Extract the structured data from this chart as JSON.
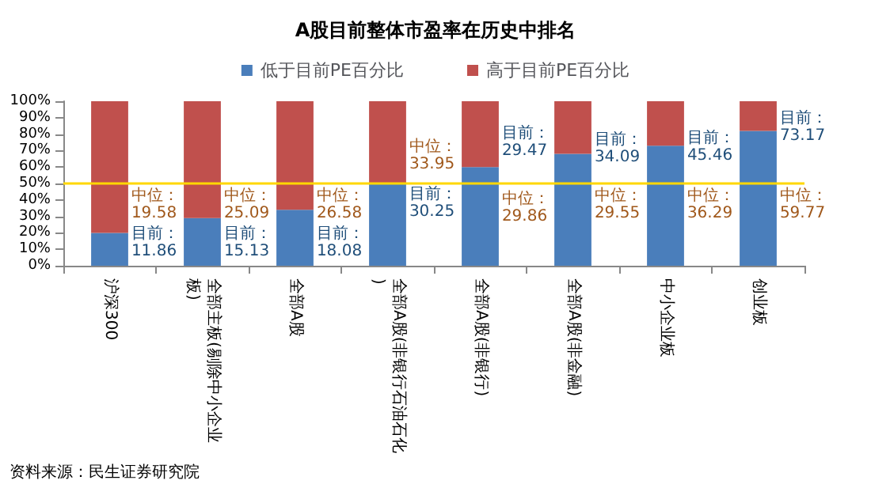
{
  "chart_data": {
    "type": "bar",
    "title": "A股目前整体市盈率在历史中排名",
    "categories": [
      "沪深300",
      "全部主板(剔除中小企业板)",
      "全部A股",
      "全部A股(非银行石油石化)",
      "全部A股(非银行)",
      "全部A股(非金融)",
      "中小企业板",
      "创业板"
    ],
    "series": [
      {
        "name": "低于目前PE百分比",
        "color": "#4a7ebb",
        "values": [
          20,
          29,
          34,
          50,
          60,
          68,
          73,
          82
        ]
      },
      {
        "name": "高于目前PE百分比",
        "color": "#c0504d",
        "values": [
          80,
          71,
          66,
          50,
          40,
          32,
          27,
          18
        ]
      }
    ],
    "stacked": true,
    "ylim": [
      0,
      100
    ],
    "yticks": [
      {
        "value": 0,
        "label": "0%"
      },
      {
        "value": 10,
        "label": "10%"
      },
      {
        "value": 20,
        "label": "20%"
      },
      {
        "value": 30,
        "label": "30%"
      },
      {
        "value": 40,
        "label": "40%"
      },
      {
        "value": 50,
        "label": "50%"
      },
      {
        "value": 60,
        "label": "60%"
      },
      {
        "value": 70,
        "label": "70%"
      },
      {
        "value": 80,
        "label": "80%"
      },
      {
        "value": 90,
        "label": "90%"
      },
      {
        "value": 100,
        "label": "100%"
      }
    ],
    "ref_lines": [
      {
        "axis": "y",
        "value": 50,
        "color": "#ffd700"
      }
    ],
    "annotations": [
      "中位：19.58",
      "目前：11.86",
      "中位：25.09",
      "目前：15.13",
      "中位：26.58",
      "目前：18.08",
      "中位：33.95",
      "目前：30.25",
      "中位：29.86",
      "目前：29.47",
      "中位：29.55",
      "目前：34.09",
      "中位：36.29",
      "目前：45.46",
      "中位：59.77",
      "目前：73.17",
      "资料来源：民生证券研究院"
    ],
    "legend": "top",
    "grid": false
  }
}
